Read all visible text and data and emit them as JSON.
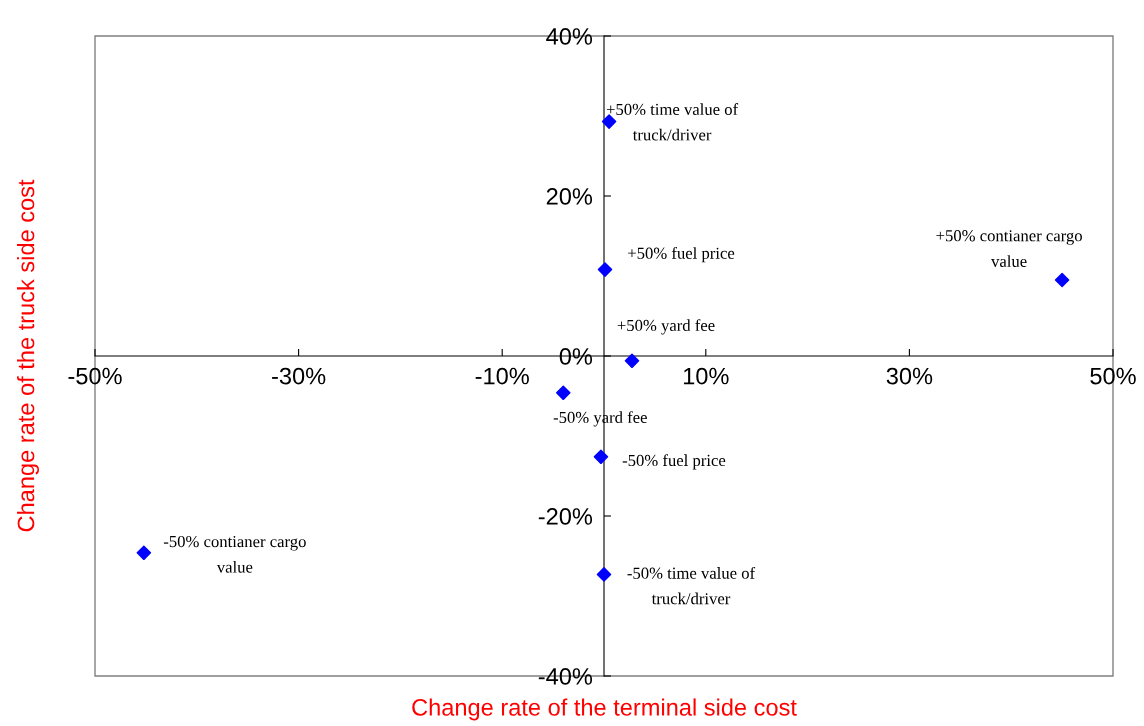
{
  "chart_data": {
    "type": "scatter",
    "xlabel": "Change rate of the terminal side cost",
    "ylabel": "Change rate of the truck side cost",
    "x": [
      0.5,
      0.1,
      2.75,
      -4.0,
      -0.3,
      0.0,
      45.0,
      -45.2
    ],
    "series": [
      {
        "color": "#0000ff",
        "values": [
          29.3,
          10.8,
          -0.6,
          -4.6,
          -12.6,
          -27.3,
          9.5,
          -24.6
        ]
      }
    ],
    "annotations": [
      {
        "text": "+50% time value of\ntruck/driver",
        "x": 0.5,
        "y": 29.3
      },
      {
        "text": "+50% fuel price",
        "x": 0.1,
        "y": 10.8
      },
      {
        "text": "+50% yard fee",
        "x": 2.75,
        "y": -0.6
      },
      {
        "text": "-50% yard fee",
        "x": -4.0,
        "y": -4.6
      },
      {
        "text": "-50% fuel price",
        "x": -0.3,
        "y": -12.6
      },
      {
        "text": "-50% time value of\ntruck/driver",
        "x": 0.0,
        "y": -27.3
      },
      {
        "text": "+50% contianer cargo\nvalue",
        "x": 45.0,
        "y": 9.5
      },
      {
        "text": "-50% contianer cargo\nvalue",
        "x": -45.2,
        "y": -24.6
      }
    ],
    "marker": "diamond",
    "grid": false,
    "legend": false,
    "xlim": [
      -50,
      50
    ],
    "ylim": [
      -40,
      40
    ],
    "xticks": [
      {
        "value": -50,
        "label": "-50%"
      },
      {
        "value": -30,
        "label": "-30%"
      },
      {
        "value": -10,
        "label": "-10%"
      },
      {
        "value": 10,
        "label": "10%"
      },
      {
        "value": 30,
        "label": "30%"
      },
      {
        "value": 50,
        "label": "50%"
      }
    ],
    "yticks": [
      {
        "value": -40,
        "label": "-40%"
      },
      {
        "value": -20,
        "label": "-20%"
      },
      {
        "value": 0,
        "label": "0%"
      },
      {
        "value": 20,
        "label": "20%"
      },
      {
        "value": 40,
        "label": "40%"
      }
    ]
  }
}
